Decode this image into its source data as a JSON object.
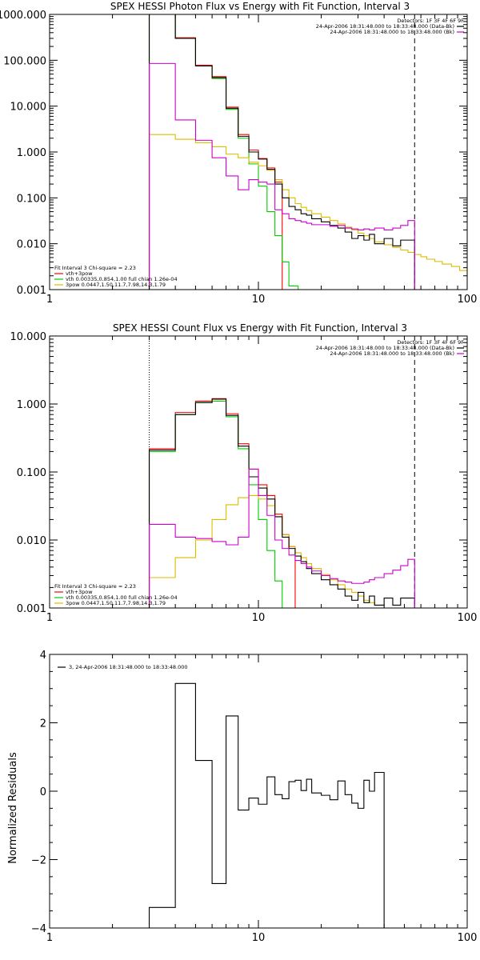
{
  "chart_data": [
    {
      "type": "line",
      "title": "SPEX HESSI Photon Flux vs Energy with Fit Function, Interval 3",
      "xscale": "log",
      "yscale": "log",
      "xlim": [
        1,
        100
      ],
      "ylim": [
        0.001,
        1000
      ],
      "xticks": [
        "1",
        "10",
        "100"
      ],
      "yticks": [
        {
          "v": 1000,
          "label": "1000.000"
        },
        {
          "v": 100,
          "label": "100.000"
        },
        {
          "v": 10,
          "label": "10.000"
        },
        {
          "v": 1,
          "label": "1.000"
        },
        {
          "v": 0.1,
          "label": "0.100"
        },
        {
          "v": 0.01,
          "label": "0.010"
        },
        {
          "v": 0.001,
          "label": "0.001"
        }
      ],
      "xlabel": "",
      "ylabel": "",
      "vlines": [
        {
          "x": 3,
          "style": "dotted",
          "color": "#000000"
        },
        {
          "x": 56,
          "style": "dashed",
          "color": "#000000"
        }
      ],
      "legend_top_right": [
        {
          "text": "Detectors: 1F 3F 4F 6F 9F",
          "color": ""
        },
        {
          "text": "24-Apr-2006 18:31:48.000 to 18:33:48.000 (Data-Bk)",
          "color": "#000000"
        },
        {
          "text": "24-Apr-2006 18:31:48.000 to 18:33:48.000 (Bk)",
          "color": "#cc00cc"
        }
      ],
      "legend_bottom_left": [
        {
          "text": "Fit Interval 3   Chi-square = 2.23",
          "color": ""
        },
        {
          "text": "vth+3pow",
          "color": "#ff0000"
        },
        {
          "text": "vth 0.00335,0.854,1.00  full chian 1.26e-04",
          "color": "#00cc00"
        },
        {
          "text": "3pow 0.0447,1.50,11.7,7.98,14.3,1.79",
          "color": "#ddbb00"
        }
      ],
      "bin_edges": [
        3.0,
        4.0,
        5.0,
        6.0,
        7.0,
        8.0,
        9.0,
        10.0,
        11.0,
        12.0,
        13.0,
        14.0,
        15.0,
        16.0,
        17.0,
        18.0,
        20.0,
        22.0,
        24.0,
        26.0,
        28.0,
        30.0,
        32.0,
        34.0,
        36.0,
        40.0,
        44.0,
        48.0,
        52.0,
        56.0
      ],
      "series": [
        {
          "name": "Data-Bk",
          "color": "#000000",
          "values": [
            1000,
            300,
            75,
            42,
            9,
            2.2,
            1.0,
            0.7,
            0.42,
            0.2,
            0.1,
            0.065,
            0.055,
            0.045,
            0.042,
            0.035,
            0.03,
            0.025,
            0.022,
            0.018,
            0.013,
            0.015,
            0.012,
            0.016,
            0.01,
            0.013,
            0.009,
            0.012,
            0.012
          ]
        },
        {
          "name": "Bk",
          "color": "#cc00cc",
          "values": [
            85,
            5,
            1.8,
            0.75,
            0.3,
            0.15,
            0.25,
            0.22,
            0.2,
            0.055,
            0.045,
            0.035,
            0.032,
            0.03,
            0.028,
            0.026,
            0.026,
            0.024,
            0.025,
            0.022,
            0.021,
            0.02,
            0.021,
            0.02,
            0.022,
            0.02,
            0.022,
            0.025,
            0.032
          ]
        }
      ],
      "model_series": [
        {
          "name": "vth+3pow",
          "color": "#ff0000",
          "bins": [
            [
              3,
              4,
              1000
            ],
            [
              4,
              5,
              310
            ],
            [
              5,
              6,
              78
            ],
            [
              6,
              7,
              44
            ],
            [
              7,
              8,
              9.5
            ],
            [
              8,
              9,
              2.4
            ],
            [
              9,
              10,
              1.1
            ],
            [
              10,
              11,
              0.72
            ],
            [
              11,
              12,
              0.45
            ],
            [
              12,
              13,
              0.22
            ]
          ]
        },
        {
          "name": "vth",
          "color": "#00cc00",
          "bins": [
            [
              3,
              4,
              1000
            ],
            [
              4,
              5,
              300
            ],
            [
              5,
              6,
              75
            ],
            [
              6,
              7,
              40
            ],
            [
              7,
              8,
              8.5
            ],
            [
              8,
              9,
              2
            ],
            [
              9,
              10,
              0.55
            ],
            [
              10,
              11,
              0.18
            ],
            [
              11,
              12,
              0.05
            ],
            [
              12,
              13,
              0.015
            ],
            [
              13,
              14,
              0.004
            ],
            [
              14,
              15.5,
              0.0012
            ]
          ]
        },
        {
          "name": "3pow",
          "color": "#ddbb00",
          "bins": [
            [
              3,
              4,
              2.4
            ],
            [
              4,
              5,
              1.9
            ],
            [
              5,
              6,
              1.6
            ],
            [
              6,
              7,
              1.3
            ],
            [
              7,
              8,
              0.9
            ],
            [
              8,
              9,
              0.75
            ],
            [
              9,
              10,
              0.6
            ],
            [
              10,
              11,
              0.5
            ],
            [
              11,
              12,
              0.4
            ],
            [
              12,
              13,
              0.25
            ],
            [
              13,
              14,
              0.15
            ],
            [
              14,
              15,
              0.1
            ],
            [
              15,
              16,
              0.075
            ],
            [
              16,
              17,
              0.062
            ],
            [
              17,
              18,
              0.053
            ],
            [
              18,
              20,
              0.045
            ],
            [
              20,
              22,
              0.038
            ],
            [
              22,
              24,
              0.032
            ],
            [
              24,
              26,
              0.027
            ],
            [
              26,
              28,
              0.023
            ],
            [
              28,
              30,
              0.02
            ],
            [
              30,
              32,
              0.017
            ],
            [
              32,
              34,
              0.015
            ],
            [
              34,
              36,
              0.013
            ],
            [
              36,
              40,
              0.011
            ],
            [
              40,
              44,
              0.0095
            ],
            [
              44,
              48,
              0.0083
            ],
            [
              48,
              52,
              0.0073
            ],
            [
              52,
              56,
              0.0065
            ],
            [
              56,
              60,
              0.0058
            ],
            [
              60,
              64,
              0.0052
            ],
            [
              64,
              70,
              0.0046
            ],
            [
              70,
              76,
              0.0041
            ],
            [
              76,
              84,
              0.0036
            ],
            [
              84,
              92,
              0.0032
            ],
            [
              92,
              100,
              0.0026
            ]
          ]
        }
      ]
    },
    {
      "type": "line",
      "title": "SPEX HESSI Count Flux vs Energy with Fit Function, Interval 3",
      "xscale": "log",
      "yscale": "log",
      "xlim": [
        1,
        100
      ],
      "ylim": [
        0.001,
        10
      ],
      "xticks": [
        "1",
        "10",
        "100"
      ],
      "yticks": [
        {
          "v": 10,
          "label": "10.000"
        },
        {
          "v": 1,
          "label": "1.000"
        },
        {
          "v": 0.1,
          "label": "0.100"
        },
        {
          "v": 0.01,
          "label": "0.010"
        },
        {
          "v": 0.001,
          "label": "0.001"
        }
      ],
      "xlabel": "",
      "ylabel": "",
      "vlines": [
        {
          "x": 3,
          "style": "dotted",
          "color": "#000000"
        },
        {
          "x": 56,
          "style": "dashed",
          "color": "#000000"
        }
      ],
      "legend_top_right": [
        {
          "text": "Detectors: 1F 3F 4F 6F 9F",
          "color": ""
        },
        {
          "text": "24-Apr-2006 18:31:48.000 to 18:33:48.000 (Data-Bk)",
          "color": "#000000"
        },
        {
          "text": "24-Apr-2006 18:31:48.000 to 18:33:48.000 (Bk)",
          "color": "#cc00cc"
        }
      ],
      "legend_bottom_left": [
        {
          "text": "Fit Interval 3   Chi-square = 2.23",
          "color": ""
        },
        {
          "text": "vth+3pow",
          "color": "#ff0000"
        },
        {
          "text": "vth 0.00335,0.854,1.00  full chian 1.26e-04",
          "color": "#00cc00"
        },
        {
          "text": "3pow 0.0447,1.50,11.7,7.98,14.3,1.79",
          "color": "#ddbb00"
        }
      ],
      "bin_edges": [
        3.0,
        4.0,
        5.0,
        6.0,
        7.0,
        8.0,
        9.0,
        10.0,
        11.0,
        12.0,
        13.0,
        14.0,
        15.0,
        16.0,
        17.0,
        18.0,
        20.0,
        22.0,
        24.0,
        26.0,
        28.0,
        30.0,
        32.0,
        34.0,
        36.0,
        40.0,
        44.0,
        48.0,
        52.0,
        56.0
      ],
      "series": [
        {
          "name": "Data-Bk",
          "color": "#000000",
          "values": [
            0.21,
            0.7,
            1.05,
            1.18,
            0.68,
            0.24,
            0.085,
            0.058,
            0.04,
            0.022,
            0.011,
            0.0075,
            0.0058,
            0.0048,
            0.0038,
            0.0032,
            0.0026,
            0.0022,
            0.0019,
            0.0015,
            0.0013,
            0.0017,
            0.0012,
            0.0015,
            0.0011,
            0.0014,
            0.0011,
            0.0014,
            0.0014
          ]
        },
        {
          "name": "Bk",
          "color": "#cc00cc",
          "values": [
            0.017,
            0.011,
            0.0105,
            0.0095,
            0.0085,
            0.011,
            0.11,
            0.045,
            0.023,
            0.01,
            0.0075,
            0.006,
            0.005,
            0.0045,
            0.004,
            0.0035,
            0.003,
            0.0027,
            0.0025,
            0.0024,
            0.0023,
            0.0023,
            0.0024,
            0.0026,
            0.0028,
            0.0032,
            0.0036,
            0.0042,
            0.0052
          ]
        }
      ],
      "model_series": [
        {
          "name": "vth+3pow",
          "color": "#ff0000",
          "bins": [
            [
              3,
              4,
              0.22
            ],
            [
              4,
              5,
              0.75
            ],
            [
              5,
              6,
              1.1
            ],
            [
              6,
              7,
              1.2
            ],
            [
              7,
              8,
              0.72
            ],
            [
              8,
              9,
              0.26
            ],
            [
              9,
              10,
              0.11
            ],
            [
              10,
              11,
              0.065
            ],
            [
              11,
              12,
              0.045
            ],
            [
              12,
              13,
              0.024
            ],
            [
              13,
              14,
              0.012
            ],
            [
              14,
              15,
              0.008
            ]
          ]
        },
        {
          "name": "vth",
          "color": "#00cc00",
          "bins": [
            [
              3,
              4,
              0.2
            ],
            [
              4,
              5,
              0.7
            ],
            [
              5,
              6,
              1.05
            ],
            [
              6,
              7,
              1.1
            ],
            [
              7,
              8,
              0.65
            ],
            [
              8,
              9,
              0.22
            ],
            [
              9,
              10,
              0.065
            ],
            [
              10,
              11,
              0.02
            ],
            [
              11,
              12,
              0.007
            ],
            [
              12,
              13,
              0.0025
            ],
            [
              13,
              14,
              0.0008
            ]
          ]
        },
        {
          "name": "3pow",
          "color": "#ddbb00",
          "bins": [
            [
              3,
              4,
              0.0028
            ],
            [
              4,
              5,
              0.0055
            ],
            [
              5,
              6,
              0.01
            ],
            [
              6,
              7,
              0.02
            ],
            [
              7,
              8,
              0.033
            ],
            [
              8,
              9,
              0.042
            ],
            [
              9,
              10,
              0.045
            ],
            [
              10,
              11,
              0.04
            ],
            [
              11,
              12,
              0.032
            ],
            [
              12,
              13,
              0.022
            ],
            [
              13,
              14,
              0.012
            ],
            [
              14,
              15,
              0.008
            ],
            [
              15,
              16,
              0.0065
            ],
            [
              16,
              17,
              0.0055
            ],
            [
              17,
              18,
              0.0045
            ],
            [
              18,
              20,
              0.0038
            ],
            [
              20,
              22,
              0.0031
            ],
            [
              22,
              24,
              0.0026
            ],
            [
              24,
              26,
              0.0022
            ],
            [
              26,
              28,
              0.0019
            ],
            [
              28,
              30,
              0.0017
            ],
            [
              30,
              32,
              0.0015
            ],
            [
              32,
              34,
              0.0013
            ],
            [
              34,
              36,
              0.0012
            ],
            [
              36,
              40,
              0.0011
            ],
            [
              40,
              44,
              0.001
            ]
          ]
        }
      ]
    },
    {
      "type": "line",
      "title": "",
      "xscale": "log",
      "yscale": "linear",
      "xlim": [
        1,
        100
      ],
      "ylim": [
        -4,
        4
      ],
      "xticks": [
        "1",
        "10",
        "100"
      ],
      "yticks": [
        {
          "v": 4,
          "label": "4"
        },
        {
          "v": 2,
          "label": "2"
        },
        {
          "v": 0,
          "label": "0"
        },
        {
          "v": -2,
          "label": "−2"
        },
        {
          "v": -4,
          "label": "−4"
        }
      ],
      "xlabel": "",
      "ylabel": "Normalized Residuals",
      "legend_top_left": [
        {
          "text": "3, 24-Apr-2006 18:31:48.000 to 18:33:48.000",
          "color": "#000000"
        }
      ],
      "bin_edges": [
        3.0,
        4.0,
        5.0,
        6.0,
        7.0,
        8.0,
        9.0,
        10.0,
        11.0,
        12.0,
        13.0,
        14.0,
        15.0,
        16.0,
        17.0,
        18.0,
        20.0,
        22.0,
        24.0,
        26.0,
        28.0,
        30.0,
        32.0,
        34.0,
        36.0,
        40.0,
        44.0,
        48.0,
        52.0,
        56.0
      ],
      "series": [
        {
          "name": "3, 24-Apr-2006 18:31:48.000 to 18:33:48.000",
          "color": "#000000",
          "values": [
            -3.4,
            3.15,
            0.9,
            -2.7,
            2.2,
            -0.55,
            -0.2,
            -0.38,
            0.42,
            -0.1,
            -0.22,
            0.28,
            0.32,
            0.02,
            0.35,
            -0.05,
            -0.12,
            -0.25,
            0.3,
            -0.1,
            -0.35,
            -0.5,
            0.32,
            0.0,
            0.55,
            -4.0,
            -4.0,
            -4.0,
            -4.0
          ]
        }
      ]
    }
  ]
}
